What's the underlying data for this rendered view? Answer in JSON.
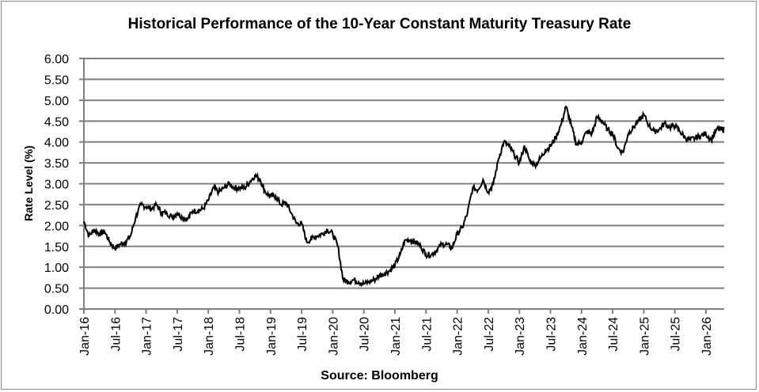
{
  "chart_data": {
    "type": "line",
    "title": "Historical  Performance  of the 10-Year Constant Maturity  Treasury Rate",
    "xlabel": "",
    "ylabel": "Rate Level (%)",
    "source": "Source: Bloomberg",
    "ylim": [
      0,
      6
    ],
    "grid": true,
    "legend": "none",
    "line_color": "#000000",
    "grid_color": "#808080",
    "y_ticks": [
      "0.00",
      "0.50",
      "1.00",
      "1.50",
      "2.00",
      "2.50",
      "3.00",
      "3.50",
      "4.00",
      "4.50",
      "5.00",
      "5.50",
      "6.00"
    ],
    "x_ticks": [
      "Jan-16",
      "Jul-16",
      "Jan-17",
      "Jul-17",
      "Jan-18",
      "Jul-18",
      "Jan-19",
      "Jul-19",
      "Jan-20",
      "Jul-20",
      "Jan-21",
      "Jul-21",
      "Jan-22",
      "Jul-22",
      "Jan-23",
      "Jul-23",
      "Jan-24",
      "Jul-24",
      "Jan-25",
      "Jul-25",
      "Jan-26"
    ],
    "series": [
      {
        "x": [
          "2016-01",
          "2016-02",
          "2016-03",
          "2016-04",
          "2016-05",
          "2016-06",
          "2016-07",
          "2016-08",
          "2016-09",
          "2016-10",
          "2016-11",
          "2016-12",
          "2017-01",
          "2017-02",
          "2017-03",
          "2017-04",
          "2017-05",
          "2017-06",
          "2017-07",
          "2017-08",
          "2017-09",
          "2017-10",
          "2017-11",
          "2017-12",
          "2018-01",
          "2018-02",
          "2018-03",
          "2018-04",
          "2018-05",
          "2018-06",
          "2018-07",
          "2018-08",
          "2018-09",
          "2018-10",
          "2018-11",
          "2018-12",
          "2019-01",
          "2019-02",
          "2019-03",
          "2019-04",
          "2019-05",
          "2019-06",
          "2019-07",
          "2019-08",
          "2019-09",
          "2019-10",
          "2019-11",
          "2019-12",
          "2020-01",
          "2020-02",
          "2020-03",
          "2020-04",
          "2020-05",
          "2020-06",
          "2020-07",
          "2020-08",
          "2020-09",
          "2020-10",
          "2020-11",
          "2020-12",
          "2021-01",
          "2021-02",
          "2021-03",
          "2021-04",
          "2021-05",
          "2021-06",
          "2021-07",
          "2021-08",
          "2021-09",
          "2021-10",
          "2021-11",
          "2021-12",
          "2022-01",
          "2022-02",
          "2022-03",
          "2022-04",
          "2022-05",
          "2022-06",
          "2022-07",
          "2022-08",
          "2022-09",
          "2022-10",
          "2022-11",
          "2022-12",
          "2023-01",
          "2023-02",
          "2023-03",
          "2023-04",
          "2023-05",
          "2023-06",
          "2023-07",
          "2023-08",
          "2023-09",
          "2023-10",
          "2023-11",
          "2023-12",
          "2024-01",
          "2024-02",
          "2024-03",
          "2024-04",
          "2024-05",
          "2024-06",
          "2024-07",
          "2024-08",
          "2024-09",
          "2024-10",
          "2024-11",
          "2024-12",
          "2025-01",
          "2025-02",
          "2025-03",
          "2025-04",
          "2025-05",
          "2025-06",
          "2025-07",
          "2025-08",
          "2025-09",
          "2025-10",
          "2025-11",
          "2025-12",
          "2026-01",
          "2026-02",
          "2026-03",
          "2026-04"
        ],
        "y": [
          2.1,
          1.75,
          1.9,
          1.8,
          1.85,
          1.6,
          1.45,
          1.55,
          1.6,
          1.75,
          2.2,
          2.5,
          2.45,
          2.4,
          2.5,
          2.3,
          2.3,
          2.2,
          2.3,
          2.2,
          2.15,
          2.35,
          2.35,
          2.4,
          2.6,
          2.9,
          2.8,
          2.9,
          3.0,
          2.9,
          2.9,
          2.9,
          3.05,
          3.2,
          3.1,
          2.8,
          2.7,
          2.7,
          2.5,
          2.55,
          2.3,
          2.05,
          2.05,
          1.6,
          1.7,
          1.75,
          1.8,
          1.9,
          1.8,
          1.5,
          0.7,
          0.65,
          0.7,
          0.65,
          0.6,
          0.65,
          0.7,
          0.8,
          0.85,
          0.92,
          1.05,
          1.3,
          1.65,
          1.65,
          1.6,
          1.5,
          1.3,
          1.3,
          1.4,
          1.55,
          1.55,
          1.45,
          1.8,
          1.95,
          2.3,
          2.9,
          2.85,
          3.1,
          2.8,
          3.0,
          3.6,
          4.0,
          3.9,
          3.7,
          3.5,
          3.9,
          3.55,
          3.45,
          3.6,
          3.8,
          3.9,
          4.1,
          4.4,
          4.85,
          4.4,
          3.95,
          4.0,
          4.25,
          4.2,
          4.6,
          4.5,
          4.3,
          4.2,
          3.85,
          3.75,
          4.2,
          4.35,
          4.5,
          4.65,
          4.4,
          4.25,
          4.3,
          4.45,
          4.35,
          4.4,
          4.25,
          4.1,
          4.05,
          4.1,
          4.15,
          4.2,
          4.05,
          4.3,
          4.3
        ]
      }
    ]
  }
}
